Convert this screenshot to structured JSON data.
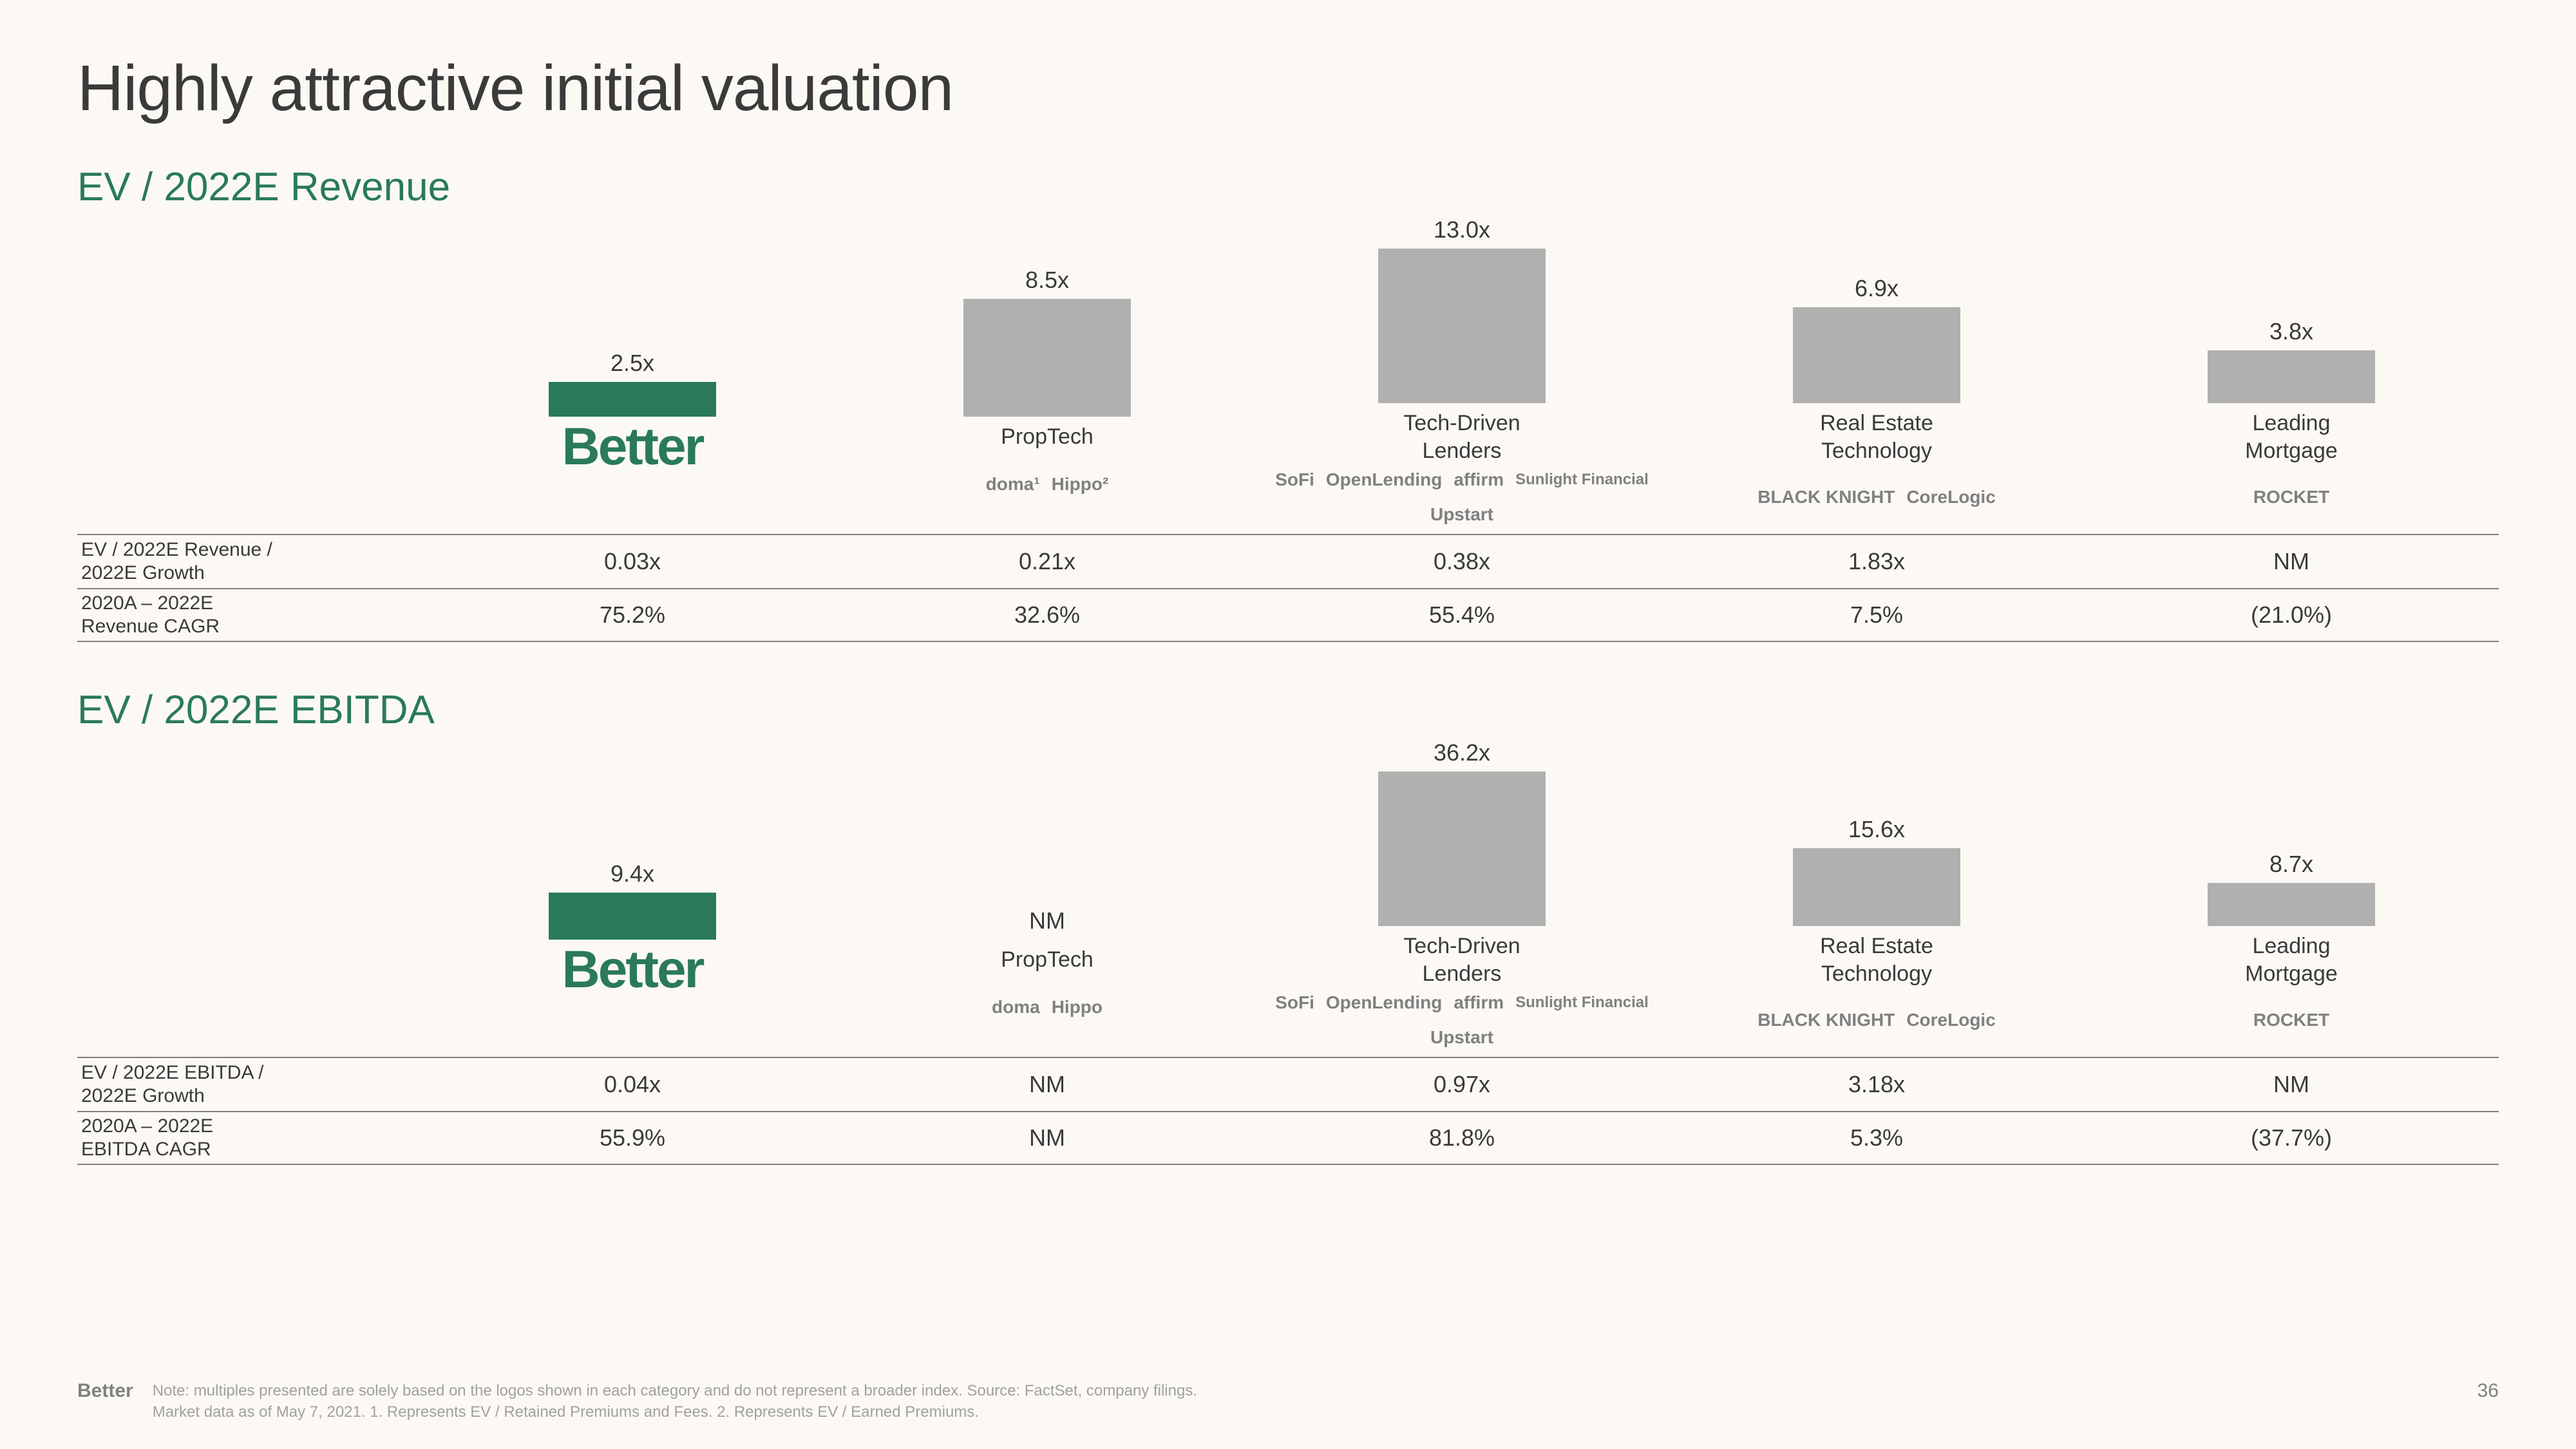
{
  "title": "Highly attractive initial valuation",
  "page_number": "36",
  "colors": {
    "better_bar": "#2a7a5a",
    "other_bar": "#b0b0b0",
    "section_title": "#2a7a5a",
    "text": "#3a3a3a",
    "background": "#fcf9f4"
  },
  "revenue": {
    "title": "EV / 2022E Revenue",
    "max_value": 13.0,
    "bars": [
      {
        "label": "2.5x",
        "value": 2.5,
        "is_better": true,
        "category": "",
        "logos": [
          "Better"
        ]
      },
      {
        "label": "8.5x",
        "value": 8.5,
        "is_better": false,
        "category": "PropTech",
        "logos": [
          "doma¹",
          "Hippo²"
        ]
      },
      {
        "label": "13.0x",
        "value": 13.0,
        "is_better": false,
        "category": "Tech-Driven\nLenders",
        "logos": [
          "SoFi",
          "OpenLending",
          "affirm",
          "Sunlight Financial",
          "Upstart"
        ]
      },
      {
        "label": "6.9x",
        "value": 6.9,
        "is_better": false,
        "category": "Real Estate\nTechnology",
        "logos": [
          "BLACK KNIGHT",
          "CoreLogic"
        ]
      },
      {
        "label": "3.8x",
        "value": 3.8,
        "is_better": false,
        "category": "Leading\nMortgage",
        "logos": [
          "ROCKET"
        ]
      }
    ],
    "table_rows": [
      {
        "label": "EV / 2022E Revenue /\n2022E Growth",
        "values": [
          "0.03x",
          "0.21x",
          "0.38x",
          "1.83x",
          "NM"
        ]
      },
      {
        "label": "2020A – 2022E\nRevenue CAGR",
        "values": [
          "75.2%",
          "32.6%",
          "55.4%",
          "7.5%",
          "(21.0%)"
        ]
      }
    ]
  },
  "ebitda": {
    "title": "EV / 2022E EBITDA",
    "max_value": 36.2,
    "bars": [
      {
        "label": "9.4x",
        "value": 9.4,
        "is_better": true,
        "category": "",
        "logos": [
          "Better"
        ]
      },
      {
        "label": "NM",
        "value": 0,
        "is_better": false,
        "category": "PropTech",
        "logos": [
          "doma",
          "Hippo"
        ]
      },
      {
        "label": "36.2x",
        "value": 36.2,
        "is_better": false,
        "category": "Tech-Driven\nLenders",
        "logos": [
          "SoFi",
          "OpenLending",
          "affirm",
          "Sunlight Financial",
          "Upstart"
        ]
      },
      {
        "label": "15.6x",
        "value": 15.6,
        "is_better": false,
        "category": "Real Estate\nTechnology",
        "logos": [
          "BLACK KNIGHT",
          "CoreLogic"
        ]
      },
      {
        "label": "8.7x",
        "value": 8.7,
        "is_better": false,
        "category": "Leading\nMortgage",
        "logos": [
          "ROCKET"
        ]
      }
    ],
    "table_rows": [
      {
        "label": "EV / 2022E EBITDA /\n2022E Growth",
        "values": [
          "0.04x",
          "NM",
          "0.97x",
          "3.18x",
          "NM"
        ]
      },
      {
        "label": "2020A – 2022E\nEBITDA CAGR",
        "values": [
          "55.9%",
          "NM",
          "81.8%",
          "5.3%",
          "(37.7%)"
        ]
      }
    ]
  },
  "footer": {
    "logo": "Better",
    "note_line1": "Note: multiples presented are solely based on the logos shown in each category and do not represent a broader index. Source: FactSet, company filings.",
    "note_line2": "Market data as of May 7, 2021. 1. Represents EV / Retained Premiums and Fees. 2. Represents EV / Earned Premiums."
  }
}
